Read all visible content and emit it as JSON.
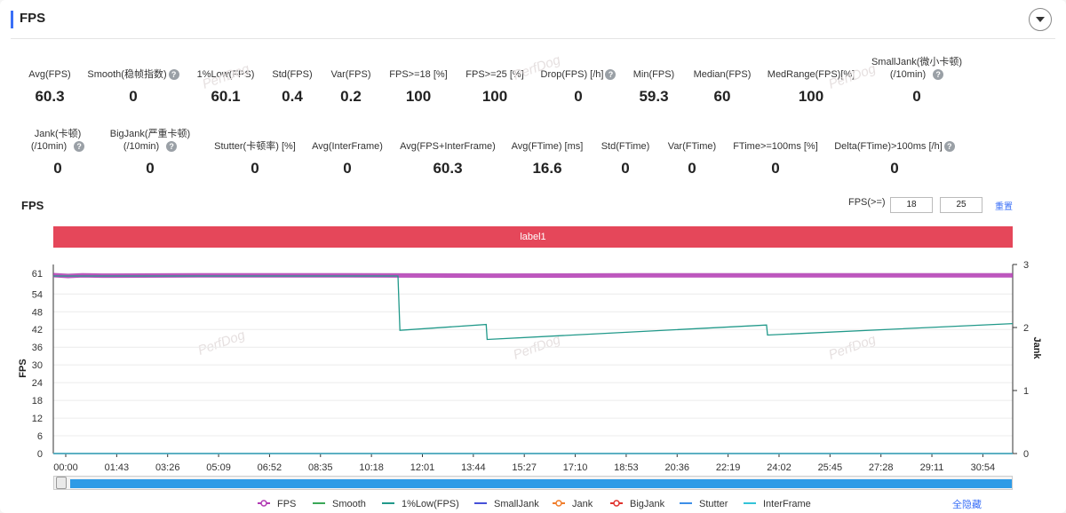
{
  "header": {
    "title": "FPS"
  },
  "stats_row1": [
    {
      "label": "Avg(FPS)",
      "value": "60.3",
      "help": false
    },
    {
      "label": "Smooth(稳帧指数)",
      "value": "0",
      "help": true
    },
    {
      "label": "1%Low(FPS)",
      "value": "60.1",
      "help": false
    },
    {
      "label": "Std(FPS)",
      "value": "0.4",
      "help": false
    },
    {
      "label": "Var(FPS)",
      "value": "0.2",
      "help": false
    },
    {
      "label": "FPS>=18 [%]",
      "value": "100",
      "help": false
    },
    {
      "label": "FPS>=25 [%]",
      "value": "100",
      "help": false
    },
    {
      "label": "Drop(FPS) [/h]",
      "value": "0",
      "help": true
    },
    {
      "label": "Min(FPS)",
      "value": "59.3",
      "help": false
    },
    {
      "label": "Median(FPS)",
      "value": "60",
      "help": false
    },
    {
      "label": "MedRange(FPS)[%]",
      "value": "100",
      "help": false
    },
    {
      "label": "SmallJank(微小卡顿)",
      "label2": "(/10min)",
      "value": "0",
      "help": true
    }
  ],
  "stats_row2": [
    {
      "label": "Jank(卡顿)",
      "label2": "(/10min)",
      "value": "0",
      "help": true
    },
    {
      "label": "BigJank(严重卡顿)",
      "label2": "(/10min)",
      "value": "0",
      "help": true
    },
    {
      "label": "Stutter(卡顿率) [%]",
      "value": "0",
      "help": false
    },
    {
      "label": "Avg(InterFrame)",
      "value": "0",
      "help": false
    },
    {
      "label": "Avg(FPS+InterFrame)",
      "value": "60.3",
      "help": false
    },
    {
      "label": "Avg(FTime) [ms]",
      "value": "16.6",
      "help": false
    },
    {
      "label": "Std(FTime)",
      "value": "0",
      "help": false
    },
    {
      "label": "Var(FTime)",
      "value": "0",
      "help": false
    },
    {
      "label": "FTime>=100ms [%]",
      "value": "0",
      "help": false
    },
    {
      "label": "Delta(FTime)>100ms [/h]",
      "value": "0",
      "help": true
    }
  ],
  "chart_section": {
    "title": "FPS",
    "threshold_label": "FPS(>=)",
    "threshold1": "18",
    "threshold2": "25",
    "reset_label": "重置",
    "label_bar": "label1",
    "hide_all": "全隐藏",
    "watermark": "PerfDog"
  },
  "chart_data": {
    "type": "line",
    "ylabel": "FPS",
    "y2label": "Jank",
    "ylim": [
      0,
      64
    ],
    "y_ticks": [
      "0",
      "6",
      "12",
      "18",
      "24",
      "30",
      "36",
      "42",
      "48",
      "54",
      "61"
    ],
    "y2lim": [
      0,
      3
    ],
    "y2_ticks": [
      "0",
      "1",
      "2",
      "3"
    ],
    "x_ticks": [
      "00:00",
      "01:43",
      "03:26",
      "05:09",
      "06:52",
      "08:35",
      "10:18",
      "12:01",
      "13:44",
      "15:27",
      "17:10",
      "18:53",
      "20:36",
      "22:19",
      "24:02",
      "25:45",
      "27:28",
      "29:11",
      "30:54"
    ],
    "x_range_seconds": [
      0,
      1968
    ],
    "series": [
      {
        "name": "FPS",
        "color": "#b13ab3",
        "x_seconds": [
          0,
          30,
          60,
          100,
          300,
          600,
          900,
          1200,
          1500,
          1800,
          1968
        ],
        "values": [
          60.4,
          60.1,
          60.3,
          60.2,
          60.3,
          60.3,
          60.2,
          60.3,
          60.3,
          60.3,
          60.3
        ]
      },
      {
        "name": "Smooth",
        "color": "#3aa757",
        "x_seconds": [
          0,
          1968
        ],
        "values": [
          0,
          0
        ]
      },
      {
        "name": "1%Low(FPS)",
        "color": "#21998a",
        "x_seconds": [
          0,
          707,
          711,
          888,
          890,
          1463,
          1465,
          1968
        ],
        "values": [
          60.1,
          60.1,
          41.7,
          43.7,
          38.6,
          43.5,
          40.1,
          44.0
        ]
      },
      {
        "name": "SmallJank",
        "color": "#4650d8",
        "x_seconds": [
          0,
          1968
        ],
        "values": [
          0,
          0
        ]
      },
      {
        "name": "Jank",
        "color": "#f07d2b",
        "x_seconds": [
          0,
          1968
        ],
        "values": [
          0,
          0
        ]
      },
      {
        "name": "BigJank",
        "color": "#e0332e",
        "x_seconds": [
          0,
          1968
        ],
        "values": [
          0,
          0
        ]
      },
      {
        "name": "Stutter",
        "color": "#3d8fe8",
        "x_seconds": [
          0,
          1968
        ],
        "values": [
          0,
          0
        ]
      },
      {
        "name": "InterFrame",
        "color": "#33c3d8",
        "x_seconds": [
          0,
          1968
        ],
        "values": [
          0,
          0
        ]
      }
    ]
  }
}
